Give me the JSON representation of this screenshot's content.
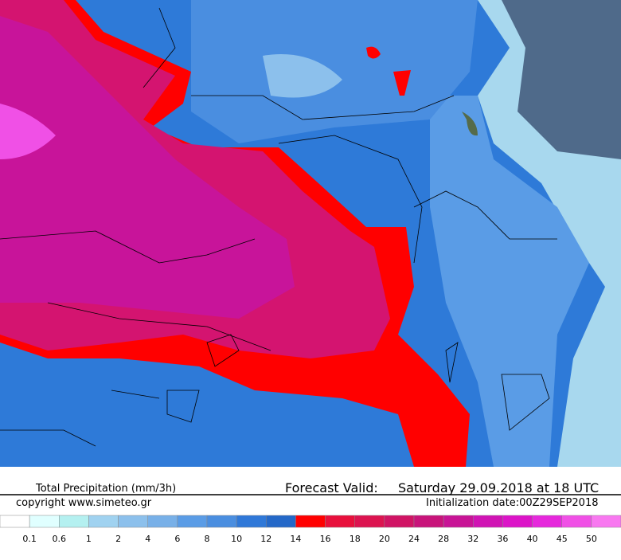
{
  "title": "Total Precipitation (mm/3h)",
  "forecast_label": "Forecast Valid:",
  "forecast_time": "Saturday 29.09.2018 at 18 UTC",
  "copyright": "copyright www.simeteo.gr",
  "initialization": "Initialization date:00Z29SEP2018",
  "legend": {
    "levels": [
      0.1,
      0.6,
      1,
      2,
      4,
      6,
      8,
      10,
      12,
      14,
      16,
      18,
      20,
      24,
      28,
      32,
      36,
      40,
      45,
      50
    ],
    "colors": [
      "#ffffff",
      "#e0ffff",
      "#b4f0f0",
      "#a0d2f0",
      "#8cc0ec",
      "#78b0e8",
      "#5a9ce6",
      "#4a8ee0",
      "#2f78d8",
      "#2468c8",
      "#ff0000",
      "#e8103c",
      "#dc1450",
      "#d01464",
      "#c8147a",
      "#c81496",
      "#d014b4",
      "#dc14c8",
      "#e628dc",
      "#f050e6",
      "#f878f0"
    ]
  }
}
